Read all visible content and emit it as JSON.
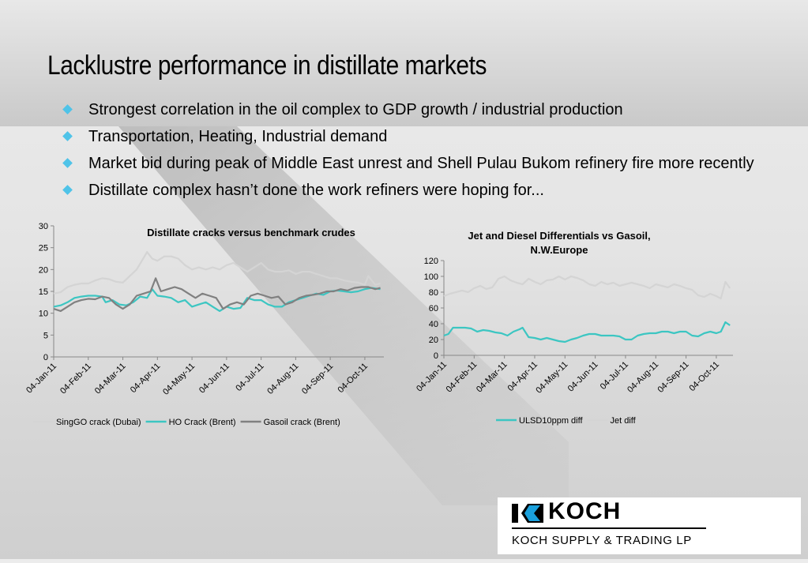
{
  "slide": {
    "title": "Lacklustre performance in distillate markets",
    "bullets": [
      "Strongest correlation in the oil complex to GDP growth / industrial production",
      "Transportation, Heating, Industrial demand",
      "Market bid during peak of Middle East unrest and Shell Pulau Bukom refinery fire more recently",
      "Distillate complex hasn’t done the work refiners were hoping for..."
    ],
    "bullet_color": "#4fc3e8"
  },
  "logo": {
    "name": "KOCH",
    "subtitle": "KOCH SUPPLY & TRADING LP"
  },
  "chart_data": [
    {
      "type": "line",
      "title": "Distillate cracks versus benchmark crudes",
      "x_ticks": [
        "04-Jan-11",
        "04-Feb-11",
        "04-Mar-11",
        "04-Apr-11",
        "04-May-11",
        "04-Jun-11",
        "04-Jul-11",
        "04-Aug-11",
        "04-Sep-11",
        "04-Oct-11"
      ],
      "y_ticks": [
        0,
        5,
        10,
        15,
        20,
        25,
        30
      ],
      "ylim": [
        0,
        30
      ],
      "xlim": [
        0,
        9.55
      ],
      "legend_placement": "bottom",
      "series": [
        {
          "name": "SingGO crack (Dubai)",
          "color": "#d4d4d4",
          "x": [
            0,
            0.2,
            0.4,
            0.6,
            0.8,
            1.0,
            1.2,
            1.4,
            1.6,
            1.8,
            2.0,
            2.2,
            2.4,
            2.55,
            2.7,
            2.85,
            3.0,
            3.2,
            3.4,
            3.6,
            3.8,
            4.0,
            4.2,
            4.4,
            4.6,
            4.8,
            5.0,
            5.2,
            5.4,
            5.6,
            5.8,
            6.0,
            6.2,
            6.4,
            6.6,
            6.8,
            7.0,
            7.2,
            7.4,
            7.6,
            7.8,
            8.0,
            8.2,
            8.4,
            8.6,
            8.8,
            9.0,
            9.1,
            9.2,
            9.3,
            9.45
          ],
          "y": [
            14.5,
            14.8,
            16,
            16.5,
            16.8,
            16.8,
            17.5,
            18,
            17.8,
            17.2,
            17,
            18.5,
            20,
            22,
            24,
            22.5,
            22,
            23,
            23,
            22.5,
            21,
            20,
            20.5,
            20,
            20.5,
            20,
            21,
            21.5,
            20.5,
            19.5,
            20.5,
            21.5,
            20,
            19.5,
            19.5,
            19.8,
            19,
            19.5,
            19.5,
            19,
            18.5,
            18,
            18,
            17.5,
            17.2,
            17,
            16.5,
            18.5,
            17.5,
            16.5,
            16.8
          ]
        },
        {
          "name": "HO Crack (Brent)",
          "color": "#3cc6c2",
          "x": [
            0,
            0.2,
            0.4,
            0.6,
            0.8,
            1.0,
            1.2,
            1.4,
            1.5,
            1.7,
            1.9,
            2.1,
            2.3,
            2.5,
            2.7,
            2.85,
            3.0,
            3.2,
            3.4,
            3.6,
            3.8,
            4.0,
            4.2,
            4.4,
            4.6,
            4.8,
            5.0,
            5.2,
            5.4,
            5.6,
            5.8,
            6.0,
            6.2,
            6.4,
            6.6,
            6.8,
            7.0,
            7.2,
            7.4,
            7.6,
            7.8,
            8.0,
            8.2,
            8.4,
            8.6,
            8.8,
            9.0,
            9.2,
            9.45
          ],
          "y": [
            11.5,
            11.8,
            12.5,
            13.5,
            13.8,
            14,
            14,
            13.8,
            12.5,
            13,
            12,
            11.8,
            12.5,
            13.8,
            13.5,
            15.5,
            14,
            13.8,
            13.5,
            12.5,
            13,
            11.5,
            12,
            12.5,
            11.5,
            10.5,
            11.5,
            11,
            11.2,
            13.5,
            13,
            13,
            12,
            11.5,
            11.5,
            12.5,
            13,
            13.5,
            14,
            14.5,
            14.2,
            15,
            15.2,
            15,
            14.8,
            15,
            15.5,
            15.8,
            15.5
          ]
        },
        {
          "name": "Gasoil crack  (Brent)",
          "color": "#808080",
          "x": [
            0,
            0.2,
            0.4,
            0.6,
            0.8,
            1.0,
            1.2,
            1.4,
            1.6,
            1.8,
            2.0,
            2.2,
            2.4,
            2.6,
            2.8,
            2.95,
            3.1,
            3.3,
            3.5,
            3.7,
            3.9,
            4.1,
            4.3,
            4.5,
            4.7,
            4.9,
            5.1,
            5.3,
            5.5,
            5.7,
            5.9,
            6.1,
            6.3,
            6.5,
            6.7,
            6.9,
            7.1,
            7.3,
            7.5,
            7.7,
            7.9,
            8.1,
            8.3,
            8.5,
            8.7,
            8.9,
            9.1,
            9.3,
            9.45
          ],
          "y": [
            11,
            10.5,
            11.5,
            12.5,
            13,
            13.3,
            13.2,
            13.8,
            13.5,
            12,
            11,
            12,
            14,
            14.5,
            15,
            18,
            15,
            15.5,
            16,
            15.5,
            14.5,
            13.5,
            14.5,
            14,
            13.5,
            11,
            12,
            12.5,
            12,
            14,
            14.5,
            14,
            13.5,
            13.8,
            12,
            12.5,
            13.5,
            14,
            14.2,
            14.5,
            15,
            15,
            15.5,
            15.2,
            15.8,
            16,
            16,
            15.5,
            15.8
          ]
        }
      ]
    },
    {
      "type": "line",
      "title": "Jet and Diesel Differentials vs Gasoil, N.W.Europe",
      "x_ticks": [
        "04-Jan-11",
        "04-Feb-11",
        "04-Mar-11",
        "04-Apr-11",
        "04-May-11",
        "04-Jun-11",
        "04-Jul-11",
        "04-Aug-11",
        "04-Sep-11",
        "04-Oct-11"
      ],
      "y_ticks": [
        0,
        20,
        40,
        60,
        80,
        100,
        120
      ],
      "ylim": [
        0,
        120
      ],
      "xlim": [
        0,
        9.55
      ],
      "legend_placement": "bottom",
      "series": [
        {
          "name": "ULSD10ppm diff",
          "color": "#3cc6c2",
          "x": [
            0,
            0.15,
            0.3,
            0.5,
            0.7,
            0.9,
            1.1,
            1.3,
            1.5,
            1.7,
            1.9,
            2.1,
            2.3,
            2.5,
            2.6,
            2.8,
            3.0,
            3.2,
            3.4,
            3.6,
            3.8,
            4.0,
            4.2,
            4.4,
            4.6,
            4.8,
            5.0,
            5.2,
            5.4,
            5.6,
            5.8,
            6.0,
            6.2,
            6.4,
            6.6,
            6.8,
            7.0,
            7.2,
            7.4,
            7.6,
            7.8,
            8.0,
            8.2,
            8.4,
            8.6,
            8.8,
            9.0,
            9.15,
            9.3,
            9.45
          ],
          "y": [
            25,
            27,
            35,
            35,
            35,
            34,
            30,
            32,
            31,
            29,
            28,
            25,
            30,
            33,
            35,
            23,
            22,
            20,
            22,
            20,
            18,
            17,
            20,
            22,
            25,
            27,
            27,
            25,
            25,
            25,
            24,
            20,
            20,
            25,
            27,
            28,
            28,
            30,
            30,
            28,
            30,
            30,
            25,
            24,
            28,
            30,
            28,
            30,
            42,
            38
          ]
        },
        {
          "name": "Jet diff",
          "color": "#d4d4d4",
          "x": [
            0,
            0.2,
            0.4,
            0.6,
            0.8,
            1.0,
            1.2,
            1.4,
            1.6,
            1.8,
            2.0,
            2.2,
            2.4,
            2.6,
            2.8,
            3.0,
            3.2,
            3.4,
            3.6,
            3.8,
            4.0,
            4.2,
            4.4,
            4.6,
            4.8,
            5.0,
            5.2,
            5.4,
            5.6,
            5.8,
            6.0,
            6.2,
            6.4,
            6.6,
            6.8,
            7.0,
            7.2,
            7.4,
            7.6,
            7.8,
            8.0,
            8.2,
            8.4,
            8.6,
            8.8,
            9.0,
            9.15,
            9.3,
            9.45
          ],
          "y": [
            75,
            78,
            80,
            82,
            80,
            85,
            88,
            84,
            86,
            97,
            100,
            95,
            92,
            90,
            97,
            93,
            90,
            95,
            96,
            100,
            96,
            100,
            98,
            95,
            90,
            88,
            93,
            90,
            92,
            88,
            90,
            92,
            90,
            88,
            85,
            90,
            88,
            86,
            90,
            88,
            85,
            83,
            76,
            74,
            78,
            75,
            72,
            93,
            85
          ]
        }
      ]
    }
  ]
}
